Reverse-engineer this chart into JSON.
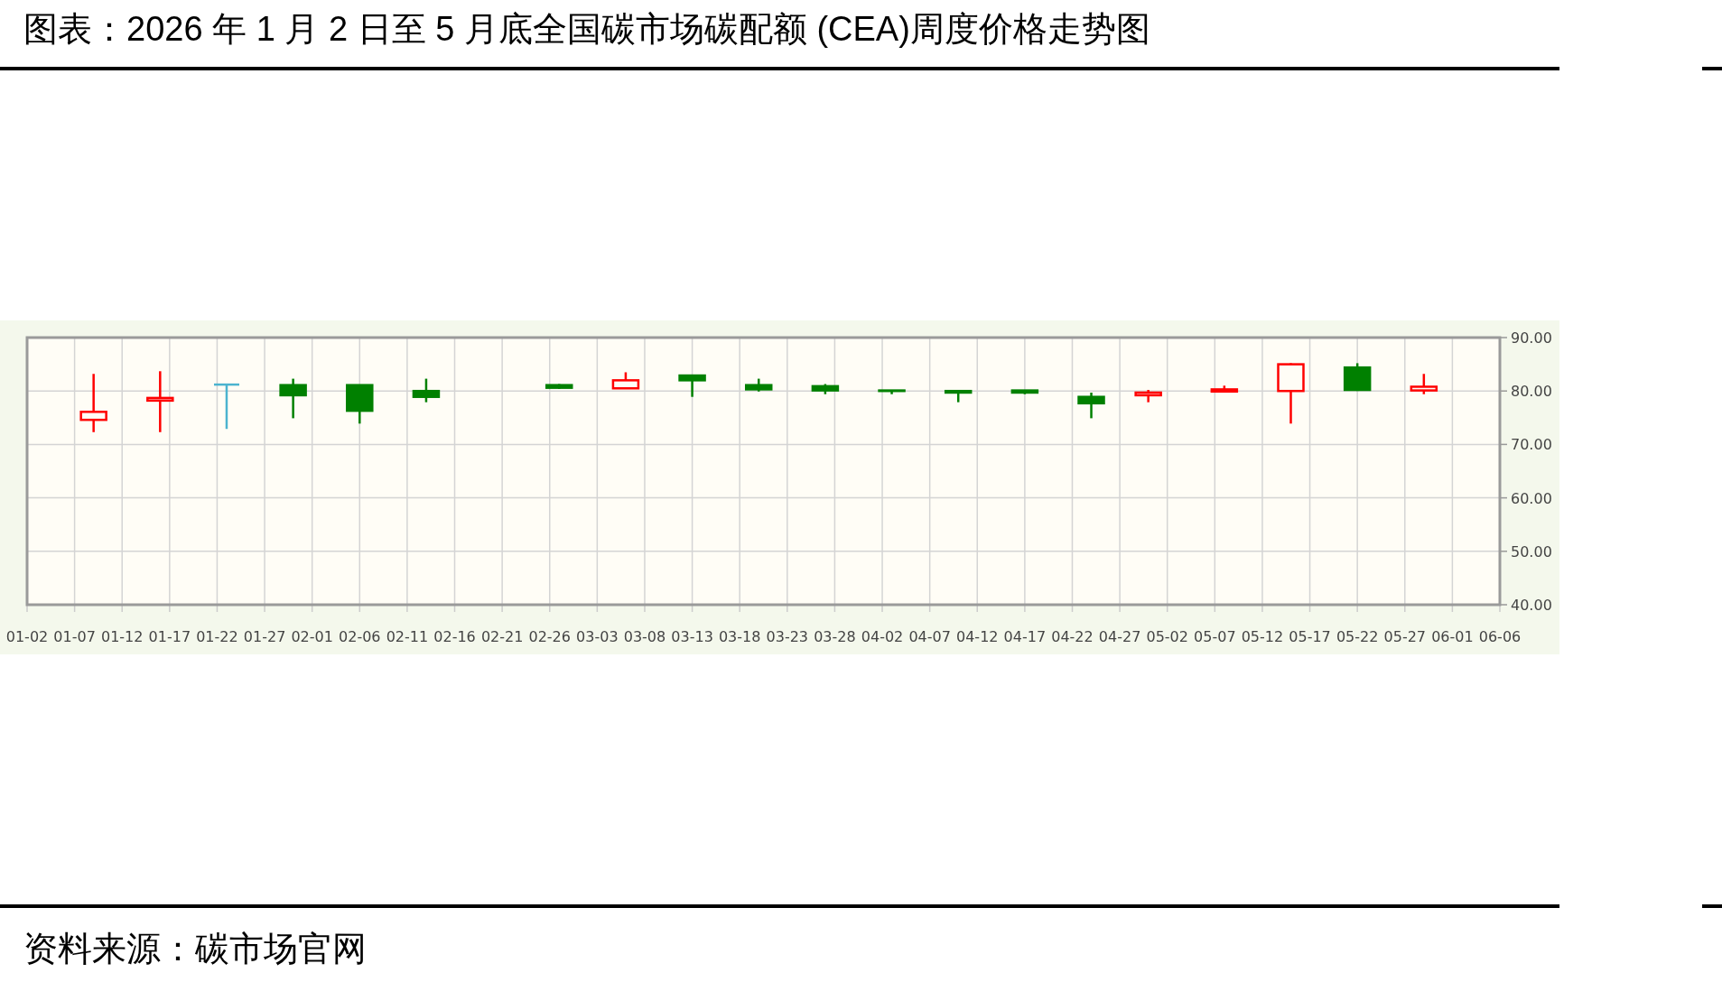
{
  "chart_data": {
    "type": "candlestick",
    "title": "图表：2026 年 1 月 2 日至 5 月底全国碳市场碳配额 (CEA)周度价格走势图",
    "annotations": [
      "资料来源：碳市场官网"
    ],
    "x": [
      "--01-09",
      "--01-16",
      "--01-23",
      "--01-30",
      "--02-06",
      "--02-13",
      "--02-27",
      "--03-06",
      "--03-13",
      "--03-20",
      "--03-27",
      "--04-03",
      "--04-10",
      "--04-17",
      "--04-24",
      "--04-30",
      "--05-08",
      "--05-15",
      "--05-22",
      "--05-29"
    ],
    "ohlc": [
      [
        74.6,
        83.2,
        72.3,
        76.1
      ],
      [
        78.2,
        83.7,
        72.3,
        78.7
      ],
      [
        81.2,
        81.2,
        72.9,
        81.2
      ],
      [
        81.1,
        82.3,
        74.9,
        79.2
      ],
      [
        81.1,
        81.2,
        73.9,
        76.3
      ],
      [
        80.0,
        82.3,
        77.9,
        78.9
      ],
      [
        81.1,
        81.3,
        80.4,
        80.6
      ],
      [
        80.5,
        83.5,
        80.5,
        82.0
      ],
      [
        82.9,
        83.0,
        78.9,
        82.0
      ],
      [
        81.1,
        82.3,
        79.9,
        80.3
      ],
      [
        80.9,
        81.3,
        79.4,
        80.1
      ],
      [
        80.1,
        80.1,
        79.4,
        80.0
      ],
      [
        80.0,
        80.1,
        77.9,
        79.7
      ],
      [
        80.1,
        80.2,
        79.4,
        79.7
      ],
      [
        78.9,
        79.7,
        74.9,
        77.7
      ],
      [
        79.2,
        80.2,
        77.9,
        79.7
      ],
      [
        79.9,
        81.0,
        79.8,
        80.3
      ],
      [
        80.0,
        85.2,
        73.9,
        85.0
      ],
      [
        84.4,
        85.2,
        80.0,
        80.2
      ],
      [
        80.1,
        83.2,
        79.4,
        80.8
      ]
    ],
    "colors": [
      "#ff0000",
      "#ff0000",
      "#4bb3cf",
      "#008000",
      "#008000",
      "#008000",
      "#008000",
      "#ff0000",
      "#008000",
      "#008000",
      "#008000",
      "#008000",
      "#008000",
      "#008000",
      "#008000",
      "#ff0000",
      "#ff0000",
      "#ff0000",
      "#008000",
      "#ff0000"
    ],
    "xlim": [
      "--01-02",
      "--06-06"
    ],
    "xticks": [
      {
        "value": "--01-02",
        "label": "01-02"
      },
      {
        "value": "--01-07",
        "label": "01-07"
      },
      {
        "value": "--01-12",
        "label": "01-12"
      },
      {
        "value": "--01-17",
        "label": "01-17"
      },
      {
        "value": "--01-22",
        "label": "01-22"
      },
      {
        "value": "--01-27",
        "label": "01-27"
      },
      {
        "value": "--02-01",
        "label": "02-01"
      },
      {
        "value": "--02-06",
        "label": "02-06"
      },
      {
        "value": "--02-11",
        "label": "02-11"
      },
      {
        "value": "--02-16",
        "label": "02-16"
      },
      {
        "value": "--02-21",
        "label": "02-21"
      },
      {
        "value": "--02-26",
        "label": "02-26"
      },
      {
        "value": "--03-03",
        "label": "03-03"
      },
      {
        "value": "--03-08",
        "label": "03-08"
      },
      {
        "value": "--03-13",
        "label": "03-13"
      },
      {
        "value": "--03-18",
        "label": "03-18"
      },
      {
        "value": "--03-23",
        "label": "03-23"
      },
      {
        "value": "--03-28",
        "label": "03-28"
      },
      {
        "value": "--04-02",
        "label": "04-02"
      },
      {
        "value": "--04-07",
        "label": "04-07"
      },
      {
        "value": "--04-12",
        "label": "04-12"
      },
      {
        "value": "--04-17",
        "label": "04-17"
      },
      {
        "value": "--04-22",
        "label": "04-22"
      },
      {
        "value": "--04-27",
        "label": "04-27"
      },
      {
        "value": "--05-02",
        "label": "05-02"
      },
      {
        "value": "--05-07",
        "label": "05-07"
      },
      {
        "value": "--05-12",
        "label": "05-12"
      },
      {
        "value": "--05-17",
        "label": "05-17"
      },
      {
        "value": "--05-22",
        "label": "05-22"
      },
      {
        "value": "--05-27",
        "label": "05-27"
      },
      {
        "value": "--06-01",
        "label": "06-01"
      },
      {
        "value": "--06-06",
        "label": "06-06"
      }
    ],
    "ylim": [
      40,
      90
    ],
    "yticks": [
      {
        "value": 40,
        "label": "40.00"
      },
      {
        "value": 50,
        "label": "50.00"
      },
      {
        "value": 60,
        "label": "60.00"
      },
      {
        "value": 70,
        "label": "70.00"
      },
      {
        "value": 80,
        "label": "80.00"
      },
      {
        "value": 90,
        "label": "90.00"
      }
    ],
    "grid": true
  }
}
